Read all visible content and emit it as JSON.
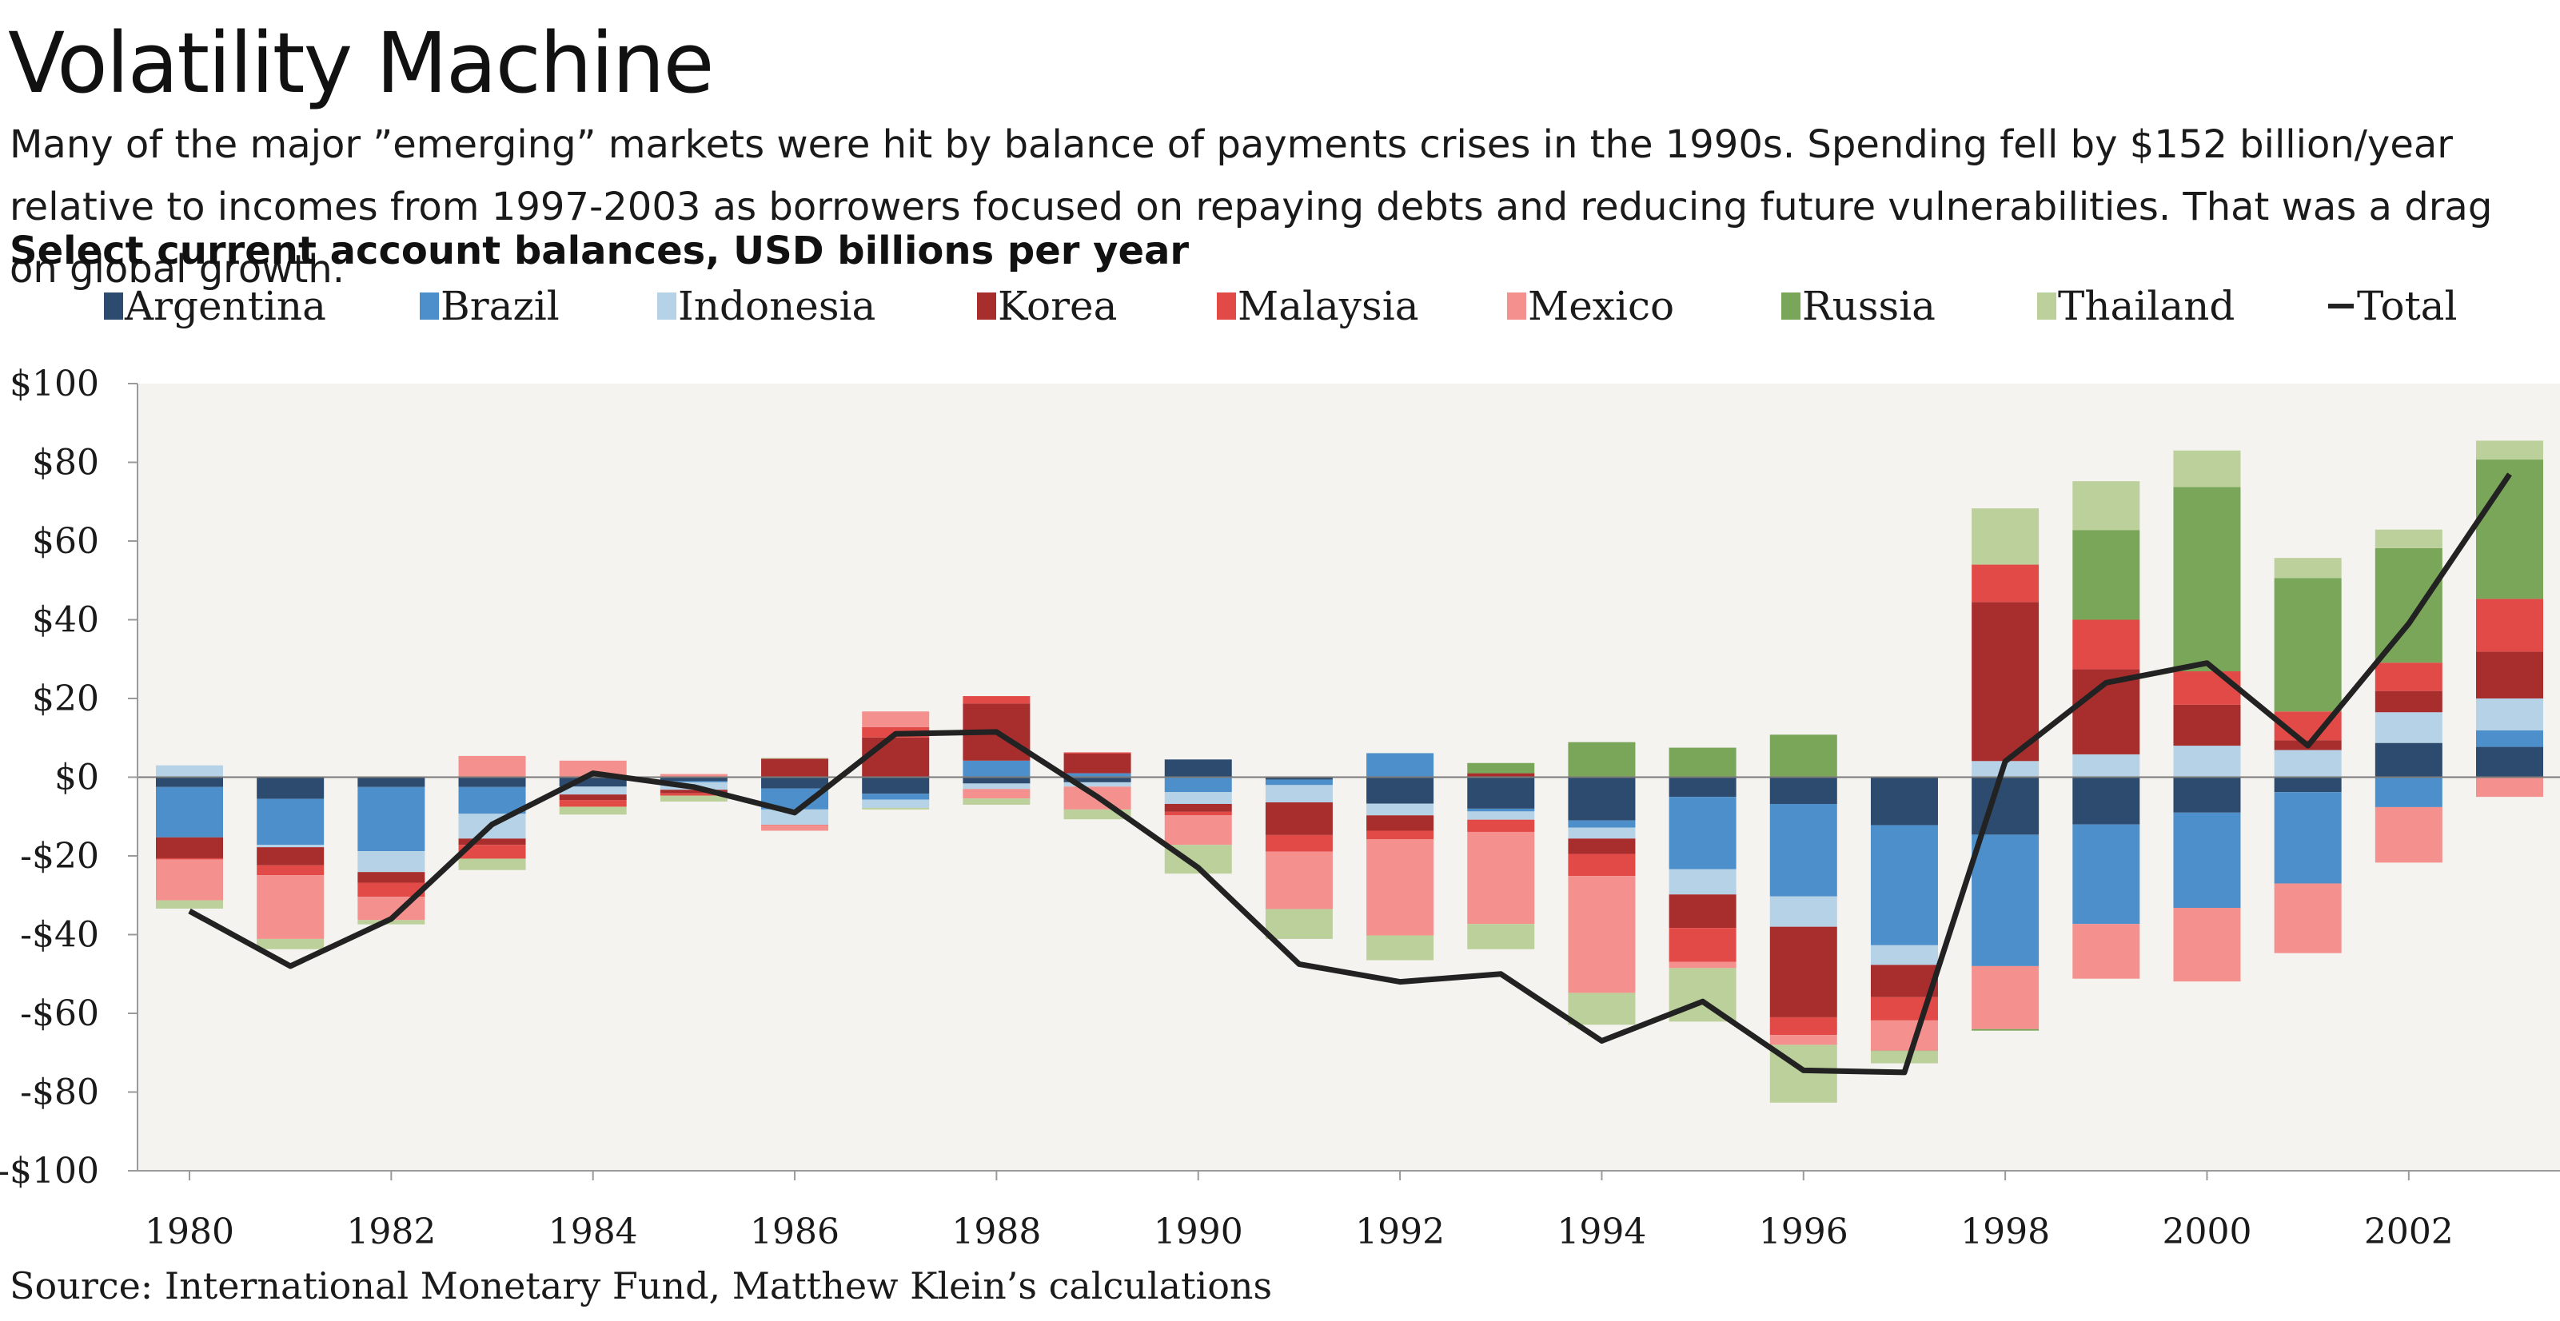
{
  "title": "Volatility Machine",
  "subtitle": "Many of the major ”emerging” markets were hit by balance of payments crises in the 1990s. Spending fell by $152 billion/year relative to incomes from 1997-2003 as borrowers focused on repaying debts and reducing future vulnerabilities. That was a drag on global growth.",
  "chart_label": "Select current account balances, USD billions per year",
  "source": "Source: International Monetary Fund, Matthew Klein’s calculations",
  "chart_data": {
    "type": "bar",
    "stacked": true,
    "categories": [
      "1980",
      "1981",
      "1982",
      "1983",
      "1984",
      "1985",
      "1986",
      "1987",
      "1988",
      "1989",
      "1990",
      "1991",
      "1992",
      "1993",
      "1994",
      "1995",
      "1996",
      "1997",
      "1998",
      "1999",
      "2000",
      "2001",
      "2002",
      "2003"
    ],
    "x_tick_labels": [
      "1980",
      "1982",
      "1984",
      "1986",
      "1988",
      "1990",
      "1992",
      "1994",
      "1996",
      "1998",
      "2000",
      "2002"
    ],
    "ylim": [
      -100,
      100
    ],
    "y_ticks": [
      100,
      80,
      60,
      40,
      20,
      0,
      -20,
      -40,
      -60,
      -80,
      -100
    ],
    "y_tick_labels": [
      "$100",
      "$80",
      "$60",
      "$40",
      "$20",
      "$0",
      "-$20",
      "-$40",
      "-$60",
      "-$80",
      "-$100"
    ],
    "legend_position": "top",
    "grid": false,
    "series": [
      {
        "name": "Argentina",
        "color": "#2d4b6e",
        "values": [
          -2.5,
          -5.5,
          -2.5,
          -2.5,
          -2.4,
          -1,
          -2.9,
          -4.2,
          -1.6,
          -1.3,
          4.5,
          -0.6,
          -6.7,
          -8,
          -11,
          -5,
          -6.8,
          -12.2,
          -14.6,
          -12,
          -9,
          -3.8,
          8.7,
          7.7
        ]
      },
      {
        "name": "Brazil",
        "color": "#4d8fca",
        "values": [
          -12.8,
          -11.7,
          -16.3,
          -6.8,
          0,
          -0.3,
          -5.3,
          -1.5,
          4.2,
          1,
          -3.8,
          -1.4,
          6.1,
          -0.7,
          -1.8,
          -18.4,
          -23.5,
          -30.5,
          -33.4,
          -25.3,
          -24.2,
          -23.2,
          -7.6,
          4.2
        ]
      },
      {
        "name": "Indonesia",
        "color": "#b5d2e6",
        "values": [
          3,
          -0.6,
          -5.3,
          -6.3,
          -2,
          -1.9,
          -3.9,
          -2.1,
          -1.4,
          -1.1,
          -3,
          -4.4,
          -3,
          -2.1,
          -2.8,
          -6.4,
          -7.7,
          -5,
          4.1,
          5.8,
          8,
          6.9,
          7.8,
          8.1
        ]
      },
      {
        "name": "Korea",
        "color": "#a82e2e",
        "values": [
          -5.3,
          -4.6,
          -2.7,
          -1.6,
          -1.4,
          -0.9,
          4.7,
          10.1,
          14.5,
          5,
          -2,
          -8.3,
          -3.9,
          1,
          -3.9,
          -8.5,
          -23,
          -8.2,
          40.4,
          21.6,
          10.4,
          2.5,
          5.4,
          11.9
        ]
      },
      {
        "name": "Malaysia",
        "color": "#e24a47",
        "values": [
          -0.3,
          -2.5,
          -3.6,
          -3.5,
          -1.7,
          -0.6,
          -0.1,
          2.6,
          1.9,
          0.3,
          -0.9,
          -4.2,
          -2.2,
          -3.1,
          -5.6,
          -8.6,
          -4.5,
          -5.9,
          9.5,
          12.6,
          8.5,
          7.3,
          7.2,
          13.4
        ]
      },
      {
        "name": "Mexico",
        "color": "#f4908e",
        "values": [
          -10.4,
          -16.2,
          -5.9,
          5.4,
          4.2,
          0.8,
          -1.4,
          4,
          -2.4,
          -5.8,
          -7.5,
          -14.6,
          -24.4,
          -23.4,
          -29.7,
          -1.6,
          -2.5,
          -7.7,
          -16,
          -13.9,
          -18.7,
          -17.7,
          -14.1,
          -5
        ]
      },
      {
        "name": "Russia",
        "color": "#7aa65a",
        "values": [
          0,
          0,
          0,
          0,
          0,
          0,
          0,
          0,
          0,
          0,
          0,
          0,
          0,
          2.6,
          8.9,
          7.5,
          10.8,
          -0.1,
          -0.4,
          22.8,
          46.8,
          33.9,
          29.1,
          35.4
        ]
      },
      {
        "name": "Thailand",
        "color": "#bcd09b",
        "values": [
          -2.1,
          -2.6,
          -1.1,
          -2.9,
          -2,
          -1.5,
          0.2,
          -0.4,
          -1.6,
          -2.5,
          -7.3,
          -7.6,
          -6.3,
          -6.4,
          -8.1,
          -13.6,
          -14.7,
          -3.1,
          14.3,
          12.4,
          9.3,
          5.1,
          4.7,
          4.8
        ]
      }
    ],
    "total": {
      "name": "Total",
      "color": "#222222",
      "values": [
        -34,
        -48,
        -36,
        -12,
        1,
        -2.5,
        -9,
        11,
        11.5,
        -5,
        -23,
        -47.5,
        -52,
        -50,
        -67,
        -57,
        -74.5,
        -75,
        4,
        24,
        29,
        8,
        39,
        77
      ]
    }
  }
}
